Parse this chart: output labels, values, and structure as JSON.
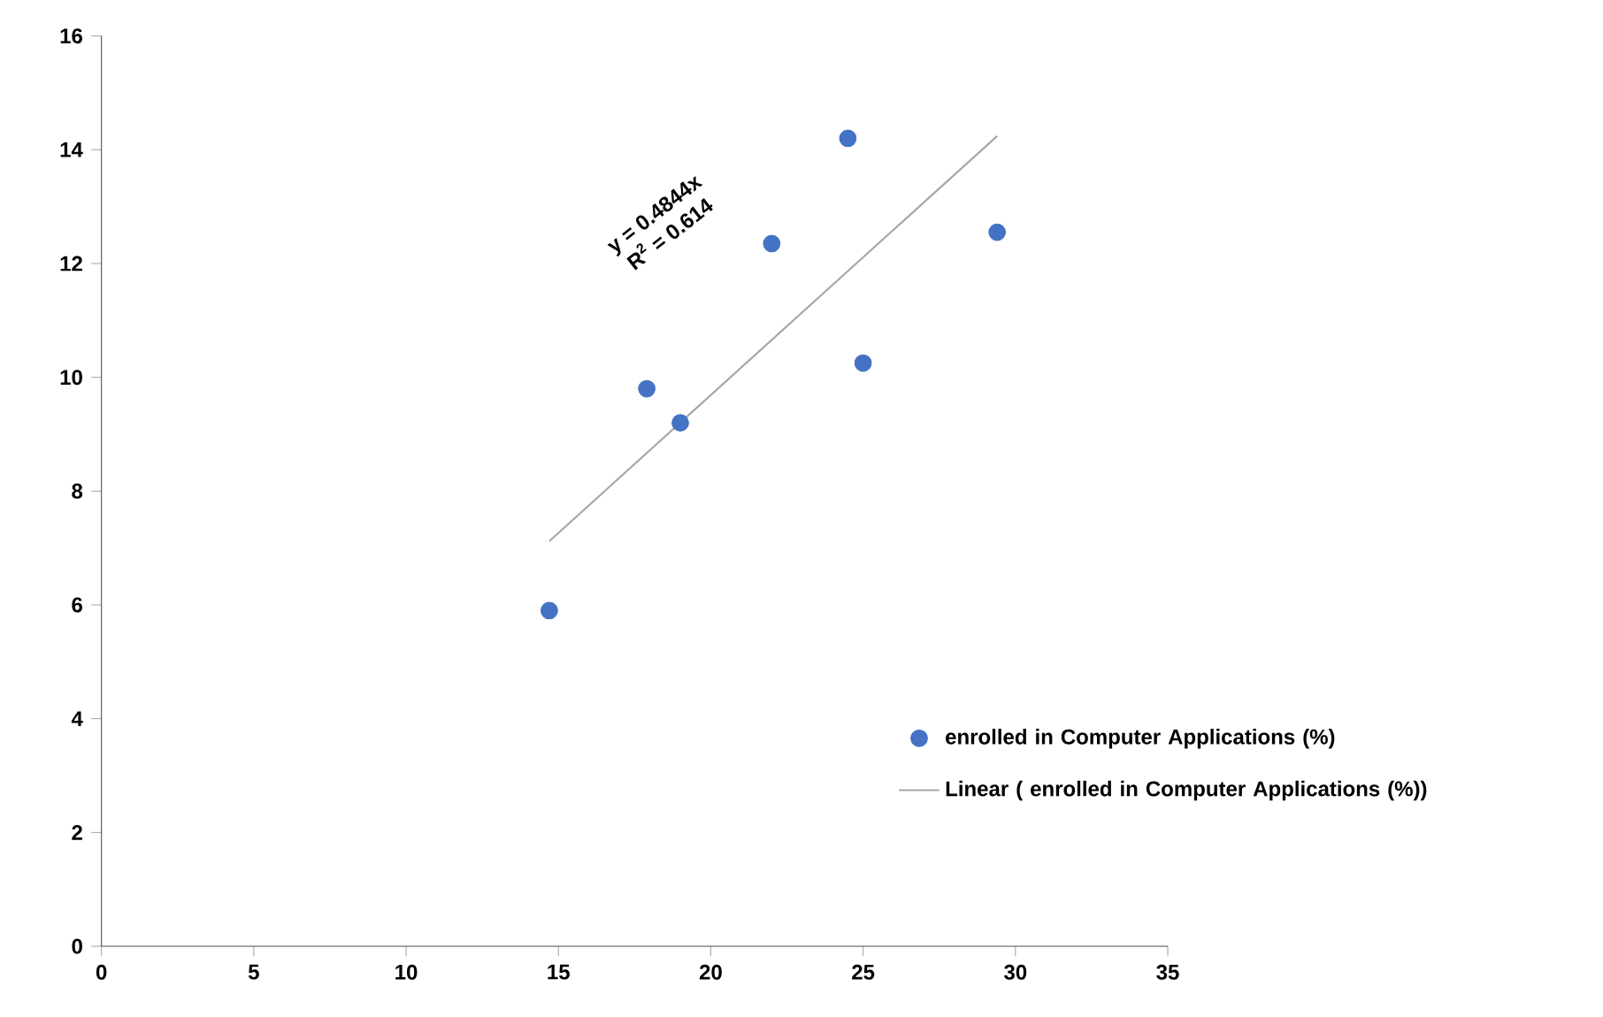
{
  "chart_data": {
    "type": "scatter",
    "series": [
      {
        "name": "enrolled in Computer Applications (%)",
        "color": "#4472c4",
        "marker": "circle",
        "x": [
          14.7,
          17.9,
          19.0,
          22.0,
          24.5,
          25.0,
          29.4
        ],
        "values": [
          5.9,
          9.8,
          9.2,
          12.35,
          14.2,
          10.25,
          12.55
        ]
      },
      {
        "name": "Linear ( enrolled in Computer Applications (%))",
        "type": "line",
        "color": "#a6a6a6",
        "marker": "none",
        "x": [
          14.7,
          29.4
        ],
        "values": [
          7.12,
          14.24
        ]
      }
    ],
    "annotations": [
      "y = 0.4844x",
      "R$^{2}$ = 0.614"
    ],
    "xlim": [
      0,
      35
    ],
    "xticks": [
      0,
      5,
      10,
      15,
      20,
      25,
      30,
      35
    ],
    "ylim": [
      0,
      16
    ],
    "yticks": [
      0,
      2,
      4,
      6,
      8,
      10,
      12,
      14,
      16
    ],
    "legend": "right",
    "grid": false
  }
}
